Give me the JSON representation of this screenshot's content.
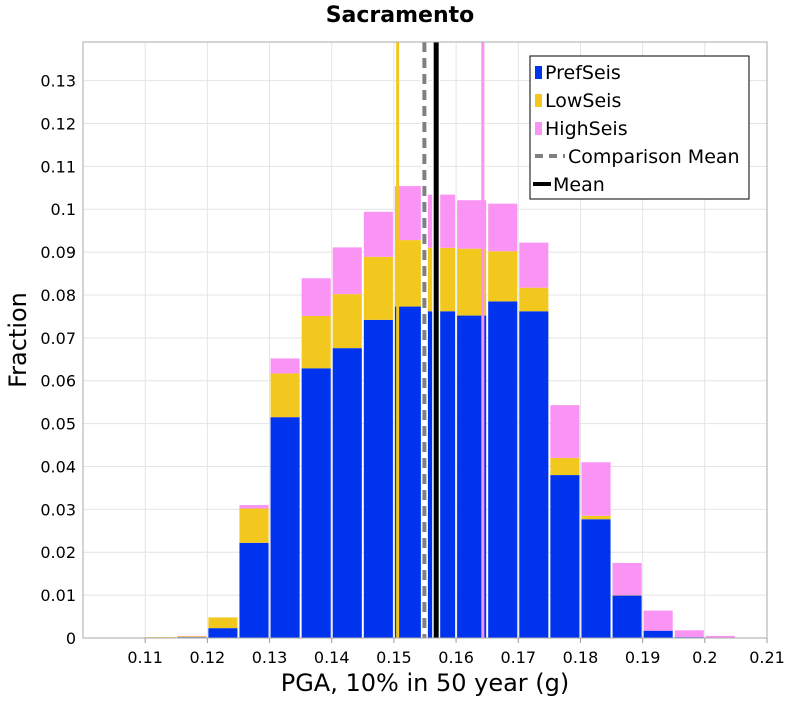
{
  "chart_data": {
    "type": "bar",
    "stacked": true,
    "title": "Sacramento",
    "xlabel": "PGA, 10% in 50 year (g)",
    "ylabel": "Fraction",
    "xlim": [
      0.1,
      0.21
    ],
    "ylim": [
      0,
      0.139
    ],
    "x_ticks": [
      "0.11",
      "0.12",
      "0.13",
      "0.14",
      "0.15",
      "0.16",
      "0.17",
      "0.18",
      "0.19",
      "0.2",
      "0.21"
    ],
    "y_ticks": [
      "0",
      "0.01",
      "0.02",
      "0.03",
      "0.04",
      "0.05",
      "0.06",
      "0.07",
      "0.08",
      "0.09",
      "0.1",
      "0.11",
      "0.12",
      "0.13"
    ],
    "bin_width": 0.005,
    "bin_centers": [
      0.1125,
      0.1175,
      0.1225,
      0.1275,
      0.1325,
      0.1375,
      0.1425,
      0.1475,
      0.1525,
      0.1575,
      0.1625,
      0.1675,
      0.1725,
      0.1775,
      0.1825,
      0.1875,
      0.1925,
      0.1975,
      0.2025
    ],
    "grid": true,
    "legend_position": "top-right",
    "series": [
      {
        "name": "PrefSeis",
        "color": "#0033ee",
        "values": [
          0.0001,
          0.0002,
          0.0023,
          0.0222,
          0.0515,
          0.0629,
          0.0676,
          0.0742,
          0.0773,
          0.0762,
          0.0752,
          0.0785,
          0.0762,
          0.038,
          0.0277,
          0.0099,
          0.0017,
          0.0002,
          0.0001
        ]
      },
      {
        "name": "LowSeis",
        "color": "#f2c81e",
        "values": [
          0.0001,
          0.0002,
          0.0025,
          0.008,
          0.0102,
          0.0122,
          0.0126,
          0.0147,
          0.0155,
          0.0148,
          0.0156,
          0.0117,
          0.0055,
          0.004,
          0.0008,
          0.0001,
          0.0,
          0.0,
          0.0
        ]
      },
      {
        "name": "HighSeis",
        "color": "#f994f5",
        "values": [
          0.0,
          0.0001,
          0.0,
          0.0008,
          0.0035,
          0.0088,
          0.0109,
          0.0105,
          0.0126,
          0.0124,
          0.0113,
          0.0111,
          0.0105,
          0.0123,
          0.0125,
          0.0075,
          0.0047,
          0.0016,
          0.0004
        ]
      }
    ],
    "vertical_lines": [
      {
        "x": 0.1506,
        "color": "#f2c81e",
        "style": "solid"
      },
      {
        "x": 0.1643,
        "color": "#f994f5",
        "style": "solid"
      },
      {
        "x": 0.1549,
        "name": "Comparison Mean",
        "color": "#808080",
        "style": "dashed"
      },
      {
        "x": 0.1568,
        "name": "Mean",
        "color": "#000000",
        "style": "solid"
      }
    ],
    "legend": [
      {
        "label": "PrefSeis",
        "color": "#0033ee",
        "kind": "box"
      },
      {
        "label": "LowSeis",
        "color": "#f2c81e",
        "kind": "box"
      },
      {
        "label": "HighSeis",
        "color": "#f994f5",
        "kind": "box"
      },
      {
        "label": "Comparison Mean",
        "color": "#808080",
        "kind": "dashed-line"
      },
      {
        "label": "Mean",
        "color": "#000000",
        "kind": "line"
      }
    ]
  }
}
